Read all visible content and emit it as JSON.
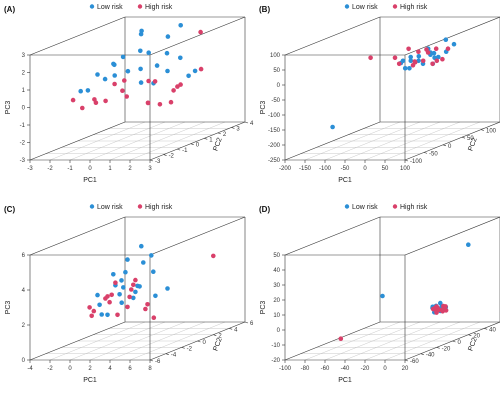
{
  "colors": {
    "low": "#2b8fd6",
    "high": "#d9406a"
  },
  "chart_data": [
    {
      "type": "scatter",
      "panel": "(A)",
      "legend": [
        "Low risk",
        "High risk"
      ],
      "xlabel": "PC1",
      "ylabel": "PC2",
      "zlabel": "PC3",
      "xticks": [
        "-3",
        "-2",
        "-1",
        "0",
        "1",
        "2",
        "3"
      ],
      "yticks": [
        "-3",
        "-2",
        "-1",
        "0",
        "1",
        "2",
        "3",
        "4"
      ],
      "zticks": [
        "-3",
        "-2",
        "-1",
        "0",
        "1",
        "2",
        "3"
      ],
      "xlim": [
        -3,
        3
      ],
      "ylim": [
        -3,
        4
      ],
      "zlim": [
        -3,
        3
      ],
      "series": [
        {
          "name": "Low risk",
          "points": [
            [
              -2.0,
              0.5,
              0.8
            ],
            [
              -1.5,
              1.0,
              1.2
            ],
            [
              -1.0,
              0.2,
              1.5
            ],
            [
              -0.5,
              1.5,
              2.8
            ],
            [
              0.0,
              0.8,
              3.2
            ],
            [
              0.5,
              2.0,
              2.5
            ],
            [
              1.0,
              1.2,
              1.8
            ],
            [
              1.5,
              0.5,
              1.0
            ],
            [
              2.0,
              1.8,
              0.6
            ],
            [
              -1.8,
              -0.5,
              0.2
            ],
            [
              -0.8,
              0.0,
              0.9
            ],
            [
              0.2,
              -0.5,
              1.3
            ],
            [
              0.8,
              0.5,
              0.3
            ],
            [
              1.8,
              1.0,
              1.6
            ],
            [
              -1.2,
              2.5,
              0.5
            ],
            [
              -0.2,
              1.0,
              2.0
            ],
            [
              0.6,
              2.8,
              2.9
            ],
            [
              1.2,
              -1.0,
              0.8
            ],
            [
              -2.5,
              0.0,
              0.0
            ],
            [
              -0.6,
              -1.0,
              1.0
            ],
            [
              0.3,
              1.5,
              1.0
            ],
            [
              1.4,
              2.2,
              0.2
            ],
            [
              -1.6,
              1.8,
              1.4
            ],
            [
              0.9,
              0.0,
              2.2
            ]
          ]
        },
        {
          "name": "High risk",
          "points": [
            [
              -2.2,
              -1.0,
              -0.2
            ],
            [
              -1.4,
              -0.5,
              -0.5
            ],
            [
              -0.8,
              -1.5,
              0.0
            ],
            [
              -0.2,
              0.0,
              -0.3
            ],
            [
              0.4,
              -1.2,
              0.4
            ],
            [
              1.0,
              -0.2,
              -0.6
            ],
            [
              1.6,
              0.8,
              -0.2
            ],
            [
              2.2,
              0.2,
              0.2
            ],
            [
              -1.0,
              1.0,
              0.3
            ],
            [
              0.0,
              1.8,
              0.0
            ],
            [
              0.8,
              2.5,
              -0.4
            ],
            [
              2.5,
              1.5,
              0.8
            ],
            [
              -1.8,
              0.8,
              -0.8
            ],
            [
              -0.4,
              -0.6,
              0.6
            ],
            [
              1.2,
              1.2,
              -1.0
            ],
            [
              2.0,
              -0.8,
              -0.5
            ],
            [
              0.6,
              0.4,
              -0.8
            ],
            [
              -1.2,
              -1.8,
              -0.4
            ],
            [
              1.8,
              2.5,
              2.6
            ],
            [
              -0.6,
              2.2,
              -0.1
            ]
          ]
        }
      ]
    },
    {
      "type": "scatter",
      "panel": "(B)",
      "legend": [
        "Low risk",
        "High risk"
      ],
      "xlabel": "PC1",
      "ylabel": "PC2",
      "zlabel": "PC3",
      "xticks": [
        "-200",
        "-150",
        "-100",
        "-50",
        "0",
        "50",
        "100"
      ],
      "yticks": [
        "-100",
        "-50",
        "0",
        "50",
        "100",
        "150"
      ],
      "zticks": [
        "-250",
        "-200",
        "-150",
        "-100",
        "-50",
        "0",
        "50",
        "100"
      ],
      "xlim": [
        -200,
        100
      ],
      "ylim": [
        -100,
        150
      ],
      "zlim": [
        -250,
        100
      ],
      "series": [
        {
          "name": "Low risk",
          "points": [
            [
              0,
              0,
              30
            ],
            [
              10,
              10,
              25
            ],
            [
              20,
              20,
              20
            ],
            [
              30,
              10,
              40
            ],
            [
              40,
              30,
              35
            ],
            [
              50,
              0,
              20
            ],
            [
              60,
              20,
              30
            ],
            [
              15,
              -10,
              10
            ],
            [
              25,
              40,
              50
            ],
            [
              35,
              -20,
              15
            ],
            [
              45,
              25,
              45
            ],
            [
              55,
              35,
              25
            ],
            [
              5,
              15,
              35
            ],
            [
              65,
              10,
              15
            ],
            [
              70,
              40,
              40
            ],
            [
              -10,
              5,
              20
            ],
            [
              80,
              50,
              60
            ],
            [
              -100,
              -80,
              -150
            ],
            [
              50,
              60,
              70
            ],
            [
              30,
              50,
              30
            ]
          ]
        },
        {
          "name": "High risk",
          "points": [
            [
              -20,
              0,
              40
            ],
            [
              0,
              -10,
              25
            ],
            [
              10,
              30,
              45
            ],
            [
              25,
              0,
              15
            ],
            [
              40,
              -10,
              30
            ],
            [
              55,
              20,
              10
            ],
            [
              70,
              30,
              20
            ],
            [
              -5,
              20,
              60
            ],
            [
              20,
              45,
              35
            ],
            [
              45,
              40,
              50
            ],
            [
              60,
              -10,
              35
            ],
            [
              75,
              10,
              25
            ],
            [
              -100,
              20,
              30
            ],
            [
              35,
              25,
              55
            ],
            [
              15,
              15,
              20
            ],
            [
              65,
              50,
              45
            ]
          ]
        }
      ]
    },
    {
      "type": "scatter",
      "panel": "(C)",
      "legend": [
        "Low risk",
        "High risk"
      ],
      "xlabel": "PC1",
      "ylabel": "PC2",
      "zlabel": "PC3",
      "xticks": [
        "-4",
        "-2",
        "0",
        "2",
        "4",
        "6",
        "8"
      ],
      "yticks": [
        "-6",
        "-4",
        "-2",
        "0",
        "2",
        "4",
        "6"
      ],
      "zticks": [
        "0",
        "2",
        "4",
        "6"
      ],
      "xlim": [
        -4,
        8
      ],
      "ylim": [
        -6,
        6
      ],
      "zlim": [
        -1,
        7
      ],
      "series": [
        {
          "name": "Low risk",
          "points": [
            [
              -2,
              0,
              2.5
            ],
            [
              -1,
              1,
              3.0
            ],
            [
              0,
              0.5,
              3.5
            ],
            [
              1,
              2,
              4.5
            ],
            [
              0,
              3,
              5.5
            ],
            [
              1,
              1,
              2.5
            ],
            [
              2,
              0,
              3.2
            ],
            [
              -1,
              -1,
              2.0
            ],
            [
              0,
              -2,
              1.5
            ],
            [
              1,
              -1,
              2.8
            ],
            [
              2,
              2,
              3.8
            ],
            [
              3,
              1,
              2.2
            ],
            [
              -2,
              2,
              3.6
            ],
            [
              0,
              1,
              4.0
            ],
            [
              1,
              3,
              4.8
            ],
            [
              -1,
              0,
              1.0
            ],
            [
              2,
              -2,
              2.4
            ],
            [
              0,
              2,
              1.8
            ],
            [
              5,
              0,
              3.0
            ],
            [
              1,
              0,
              5.2
            ],
            [
              -1,
              2,
              2.6
            ],
            [
              3,
              -1,
              3.4
            ]
          ]
        },
        {
          "name": "High risk",
          "points": [
            [
              -2,
              -1,
              1.8
            ],
            [
              -1,
              0,
              2.4
            ],
            [
              0,
              -1,
              2.2
            ],
            [
              1,
              0,
              1.6
            ],
            [
              -1,
              1,
              3.2
            ],
            [
              0,
              2,
              2.8
            ],
            [
              2,
              1,
              1.2
            ],
            [
              -2,
              1,
              2.0
            ],
            [
              1,
              -2,
              3.0
            ],
            [
              0,
              0,
              1.0
            ],
            [
              2,
              -1,
              2.6
            ],
            [
              -1,
              -2,
              1.4
            ],
            [
              3,
              0,
              1.8
            ],
            [
              8,
              2,
              5.0
            ],
            [
              6,
              -3,
              1.5
            ],
            [
              1,
              1,
              3.4
            ],
            [
              -1,
              3,
              2.2
            ],
            [
              0,
              -3,
              2.0
            ]
          ]
        }
      ]
    },
    {
      "type": "scatter",
      "panel": "(D)",
      "legend": [
        "Low risk",
        "High risk"
      ],
      "xlabel": "PC1",
      "ylabel": "PC2",
      "zlabel": "PC3",
      "xticks": [
        "-100",
        "-80",
        "-60",
        "-40",
        "-20",
        "0",
        "20"
      ],
      "yticks": [
        "-60",
        "-40",
        "-20",
        "0",
        "20",
        "40",
        "60"
      ],
      "zticks": [
        "-20",
        "-10",
        "0",
        "10",
        "20",
        "30",
        "40",
        "50"
      ],
      "xlim": [
        -100,
        20
      ],
      "ylim": [
        -60,
        60
      ],
      "zlim": [
        -20,
        50
      ],
      "series": [
        {
          "name": "Low risk",
          "points": [
            [
              0,
              0,
              2
            ],
            [
              2,
              2,
              3
            ],
            [
              4,
              -2,
              1
            ],
            [
              6,
              4,
              2
            ],
            [
              8,
              0,
              0
            ],
            [
              10,
              2,
              1
            ],
            [
              3,
              6,
              4
            ],
            [
              5,
              -4,
              0
            ],
            [
              7,
              8,
              1
            ],
            [
              9,
              -6,
              2
            ],
            [
              1,
              -1,
              3
            ],
            [
              11,
              3,
              0
            ],
            [
              -50,
              0,
              10
            ],
            [
              20,
              20,
              40
            ],
            [
              6,
              -2,
              3
            ],
            [
              4,
              4,
              0
            ]
          ]
        },
        {
          "name": "High risk",
          "points": [
            [
              1,
              1,
              1
            ],
            [
              3,
              -1,
              2
            ],
            [
              5,
              3,
              0
            ],
            [
              7,
              -3,
              1
            ],
            [
              9,
              5,
              2
            ],
            [
              11,
              -1,
              0
            ],
            [
              2,
              4,
              1
            ],
            [
              6,
              6,
              2
            ],
            [
              8,
              -5,
              0
            ],
            [
              10,
              1,
              1
            ],
            [
              4,
              0,
              3
            ],
            [
              12,
              2,
              0
            ],
            [
              -60,
              -40,
              -10
            ],
            [
              3,
              -3,
              2
            ]
          ]
        }
      ]
    }
  ]
}
